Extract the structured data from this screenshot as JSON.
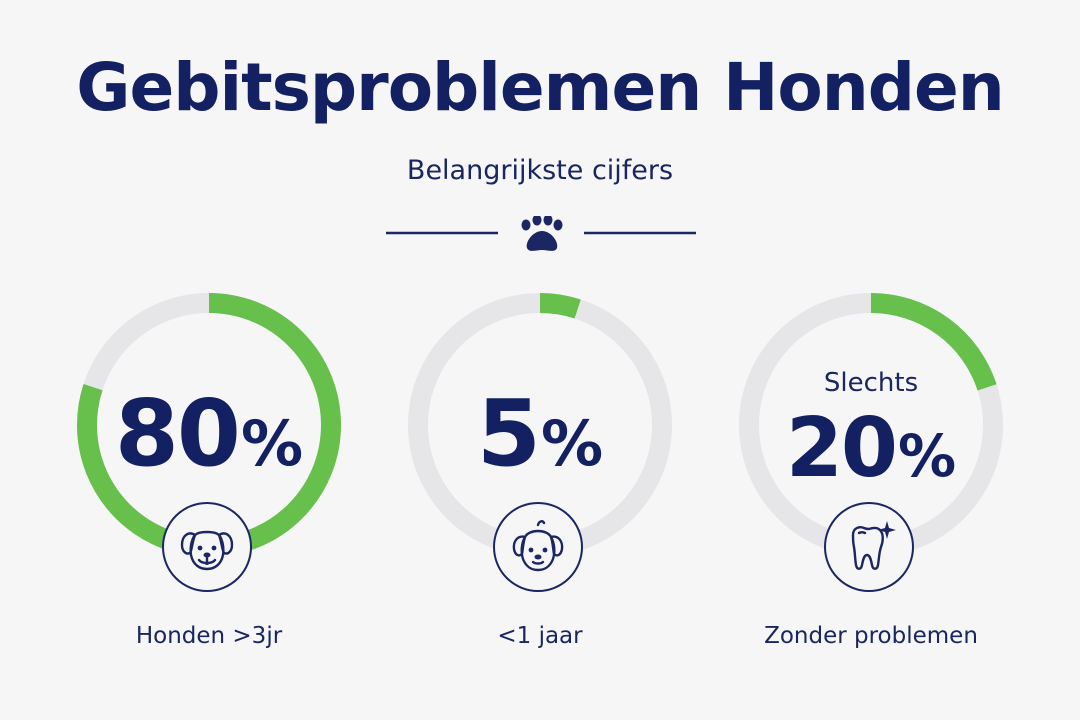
{
  "header": {
    "title": "Gebitsproblemen Honden",
    "subtitle": "Belangrijkste cijfers",
    "divider_icon": "paw-icon"
  },
  "colors": {
    "navy": "#132162",
    "green": "#67c04b",
    "track": "#e6e6e8",
    "background": "#f6f6f7"
  },
  "stats": [
    {
      "prefix": "",
      "value": "80",
      "unit": "%",
      "fraction": 0.8,
      "icon": "dog-face-icon",
      "label": "Honden >3jr"
    },
    {
      "prefix": "",
      "value": "5",
      "unit": "%",
      "fraction": 0.05,
      "icon": "puppy-face-icon",
      "label": "<1 jaar"
    },
    {
      "prefix": "Slechts",
      "value": "20",
      "unit": "%",
      "fraction": 0.2,
      "icon": "tooth-sparkle-icon",
      "label": "Zonder problemen"
    }
  ]
}
